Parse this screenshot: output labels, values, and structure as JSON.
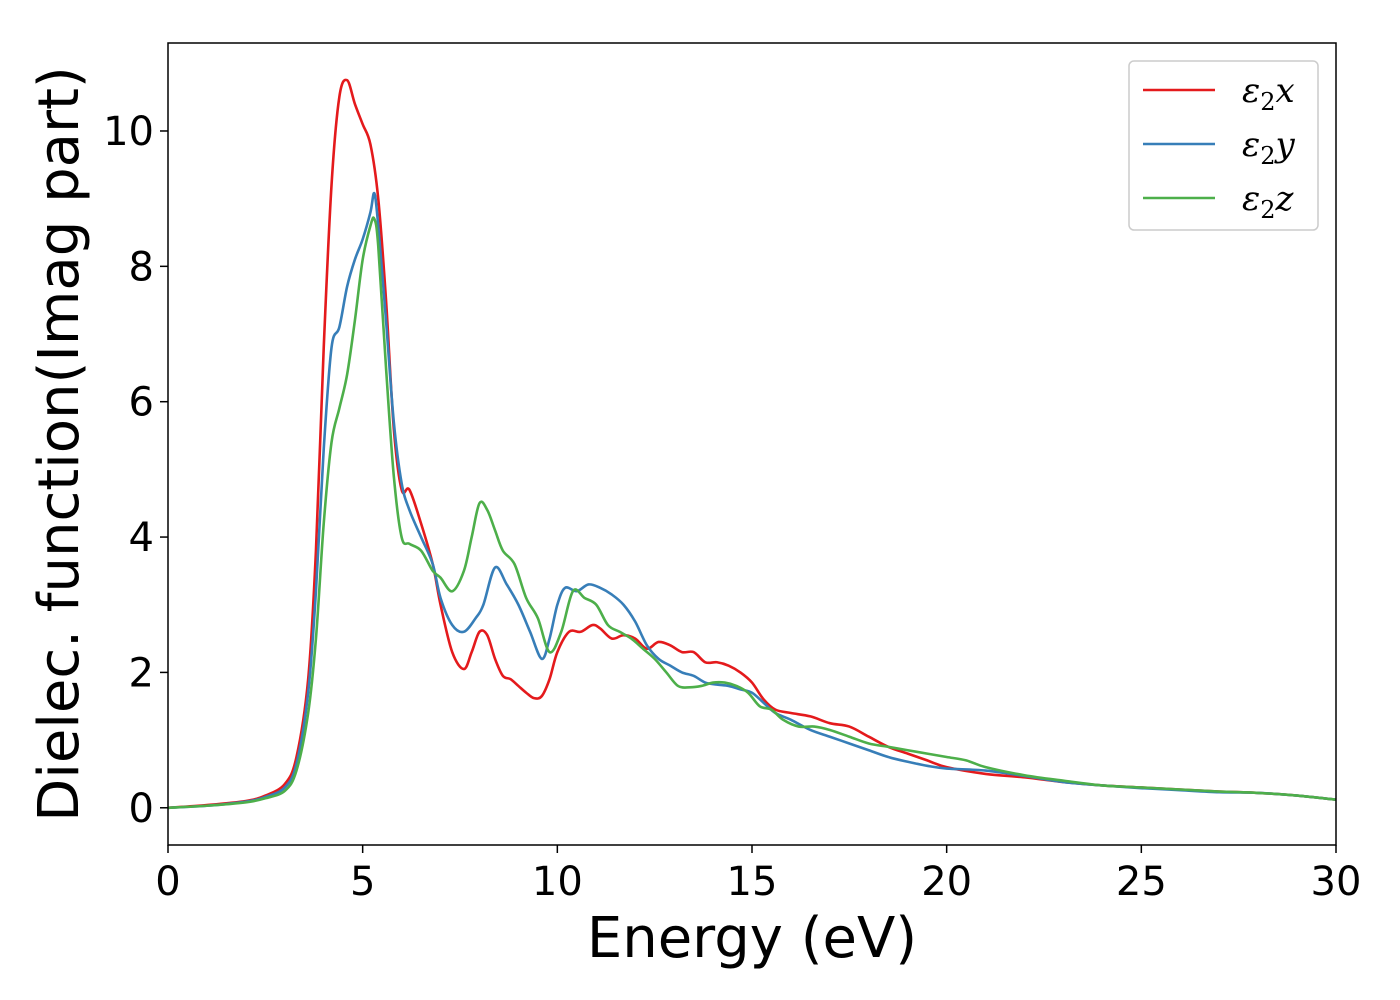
{
  "chart_data": {
    "type": "line",
    "xlabel": "Energy (eV)",
    "ylabel": "Dielec. function(Imag part)",
    "xlim": [
      0,
      30
    ],
    "ylim": [
      -0.55,
      11.3
    ],
    "x_ticks": [
      0,
      5,
      10,
      15,
      20,
      25,
      30
    ],
    "y_ticks": [
      0,
      2,
      4,
      6,
      8,
      10
    ],
    "grid": false,
    "legend_position": "top-right",
    "series": [
      {
        "name": "ε₂x",
        "legend_base": "ε",
        "legend_sub": "2",
        "legend_suffix": "x",
        "color": "#e41a1c",
        "x": [
          0,
          1,
          2,
          2.5,
          3,
          3.3,
          3.6,
          3.8,
          4.0,
          4.2,
          4.4,
          4.6,
          4.8,
          5.0,
          5.2,
          5.4,
          5.6,
          5.8,
          6.0,
          6.2,
          6.5,
          6.8,
          7.0,
          7.3,
          7.6,
          7.8,
          8.0,
          8.2,
          8.4,
          8.6,
          8.8,
          9.0,
          9.2,
          9.4,
          9.6,
          9.8,
          10.0,
          10.3,
          10.6,
          10.9,
          11.1,
          11.4,
          11.7,
          12.0,
          12.3,
          12.6,
          12.9,
          13.2,
          13.5,
          13.8,
          14.1,
          14.4,
          14.7,
          15.0,
          15.3,
          15.6,
          16.0,
          16.5,
          17.0,
          17.5,
          18.0,
          18.5,
          19.0,
          19.5,
          20.0,
          21.0,
          22.0,
          23.0,
          24.0,
          25.0,
          26.0,
          27.0,
          28.0,
          29.0,
          30.0
        ],
        "values": [
          0,
          0.04,
          0.1,
          0.18,
          0.35,
          0.75,
          1.9,
          3.8,
          6.8,
          9.2,
          10.5,
          10.75,
          10.4,
          10.1,
          9.8,
          9.0,
          7.5,
          5.6,
          4.7,
          4.7,
          4.2,
          3.6,
          3.0,
          2.3,
          2.05,
          2.3,
          2.6,
          2.55,
          2.2,
          1.95,
          1.9,
          1.8,
          1.7,
          1.62,
          1.65,
          1.9,
          2.3,
          2.6,
          2.6,
          2.7,
          2.65,
          2.5,
          2.55,
          2.5,
          2.35,
          2.45,
          2.4,
          2.3,
          2.3,
          2.15,
          2.15,
          2.1,
          2.0,
          1.85,
          1.6,
          1.45,
          1.4,
          1.35,
          1.25,
          1.2,
          1.05,
          0.9,
          0.8,
          0.7,
          0.6,
          0.5,
          0.45,
          0.38,
          0.33,
          0.3,
          0.27,
          0.24,
          0.22,
          0.18,
          0.12
        ]
      },
      {
        "name": "ε₂y",
        "legend_base": "ε",
        "legend_sub": "2",
        "legend_suffix": "y",
        "color": "#377eb8",
        "x": [
          0,
          1,
          2,
          2.5,
          3,
          3.3,
          3.6,
          3.8,
          4.0,
          4.2,
          4.4,
          4.6,
          4.8,
          5.0,
          5.2,
          5.3,
          5.4,
          5.6,
          5.8,
          6.0,
          6.2,
          6.5,
          6.8,
          7.0,
          7.3,
          7.6,
          7.9,
          8.1,
          8.4,
          8.7,
          9.0,
          9.3,
          9.6,
          9.8,
          10.0,
          10.2,
          10.5,
          10.8,
          11.1,
          11.4,
          11.7,
          12.0,
          12.3,
          12.6,
          12.9,
          13.2,
          13.5,
          13.8,
          14.1,
          14.4,
          14.7,
          15.0,
          15.3,
          15.6,
          16.0,
          16.5,
          17.0,
          17.5,
          18.0,
          18.5,
          19.0,
          19.5,
          20.0,
          21.0,
          22.0,
          23.0,
          24.0,
          25.0,
          26.0,
          27.0,
          28.0,
          29.0,
          30.0
        ],
        "values": [
          0,
          0.03,
          0.09,
          0.16,
          0.3,
          0.65,
          1.7,
          3.2,
          5.3,
          6.8,
          7.1,
          7.7,
          8.1,
          8.4,
          8.8,
          9.08,
          8.6,
          7.2,
          5.7,
          4.8,
          4.4,
          4.0,
          3.6,
          3.1,
          2.7,
          2.6,
          2.8,
          3.0,
          3.55,
          3.3,
          3.0,
          2.6,
          2.2,
          2.5,
          3.0,
          3.25,
          3.2,
          3.3,
          3.25,
          3.15,
          3.0,
          2.75,
          2.4,
          2.2,
          2.1,
          2.0,
          1.95,
          1.85,
          1.82,
          1.8,
          1.75,
          1.7,
          1.55,
          1.4,
          1.3,
          1.15,
          1.05,
          0.95,
          0.85,
          0.75,
          0.68,
          0.62,
          0.58,
          0.55,
          0.47,
          0.38,
          0.33,
          0.29,
          0.26,
          0.23,
          0.22,
          0.18,
          0.12
        ]
      },
      {
        "name": "ε₂z",
        "legend_base": "ε",
        "legend_sub": "2",
        "legend_suffix": "z",
        "color": "#4daf4a",
        "x": [
          0,
          1,
          2,
          2.5,
          3,
          3.3,
          3.6,
          3.8,
          4.0,
          4.2,
          4.4,
          4.6,
          4.8,
          5.0,
          5.2,
          5.3,
          5.4,
          5.6,
          5.8,
          6.0,
          6.2,
          6.5,
          6.8,
          7.0,
          7.3,
          7.6,
          7.8,
          8.0,
          8.2,
          8.4,
          8.6,
          8.9,
          9.2,
          9.5,
          9.8,
          10.1,
          10.4,
          10.7,
          11.0,
          11.3,
          11.6,
          11.9,
          12.2,
          12.5,
          12.8,
          13.1,
          13.4,
          13.7,
          14.0,
          14.3,
          14.6,
          14.9,
          15.2,
          15.5,
          15.8,
          16.2,
          16.6,
          17.0,
          17.5,
          18.0,
          18.5,
          19.0,
          19.5,
          20.0,
          20.5,
          21.0,
          22.0,
          23.0,
          24.0,
          25.0,
          26.0,
          27.0,
          28.0,
          29.0,
          30.0
        ],
        "values": [
          0,
          0.03,
          0.08,
          0.14,
          0.25,
          0.55,
          1.4,
          2.5,
          4.2,
          5.4,
          5.9,
          6.4,
          7.2,
          8.1,
          8.6,
          8.7,
          8.3,
          6.5,
          4.9,
          4.0,
          3.9,
          3.8,
          3.5,
          3.4,
          3.2,
          3.5,
          4.0,
          4.5,
          4.4,
          4.1,
          3.8,
          3.6,
          3.1,
          2.8,
          2.3,
          2.6,
          3.2,
          3.1,
          3.0,
          2.7,
          2.6,
          2.5,
          2.35,
          2.2,
          2.0,
          1.8,
          1.78,
          1.8,
          1.85,
          1.85,
          1.8,
          1.7,
          1.5,
          1.45,
          1.3,
          1.2,
          1.2,
          1.15,
          1.05,
          0.95,
          0.9,
          0.85,
          0.8,
          0.75,
          0.7,
          0.6,
          0.48,
          0.4,
          0.33,
          0.3,
          0.27,
          0.24,
          0.22,
          0.18,
          0.12
        ]
      }
    ]
  }
}
